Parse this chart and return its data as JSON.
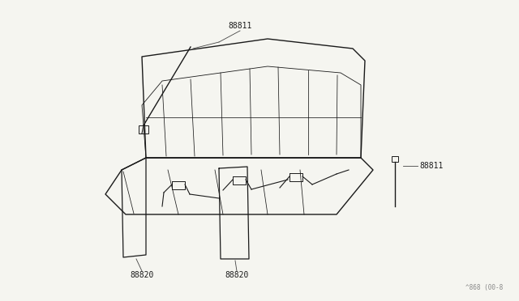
{
  "bg_color": "#f5f5f0",
  "line_color": "#1a1a1a",
  "label_color": "#1a1a1a",
  "watermark": "^868 (00-8",
  "fig_width": 6.4,
  "fig_height": 3.72,
  "dpi": 100
}
